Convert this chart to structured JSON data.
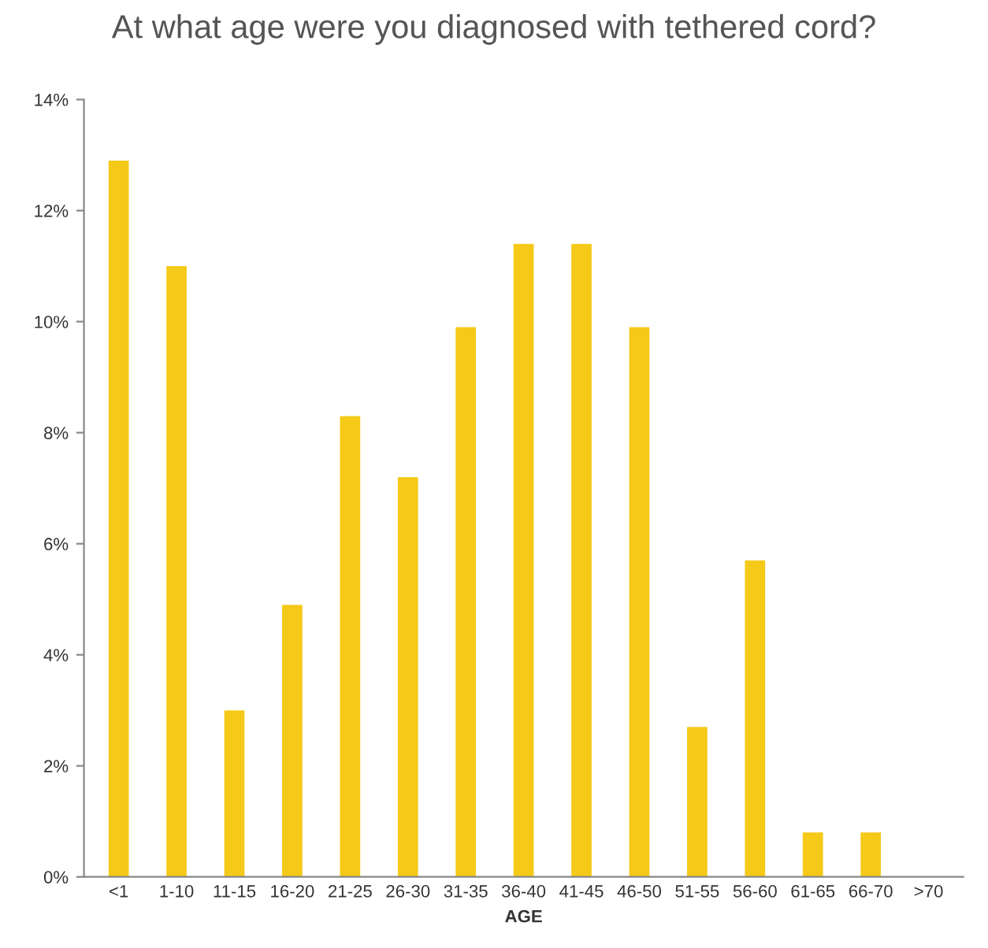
{
  "chart_data": {
    "type": "bar",
    "title": "At what age were you diagnosed with tethered cord?",
    "xlabel": "AGE",
    "categories": [
      "<1",
      "1-10",
      "11-15",
      "16-20",
      "21-25",
      "26-30",
      "31-35",
      "36-40",
      "41-45",
      "46-50",
      "51-55",
      "56-60",
      "61-65",
      "66-70",
      ">70"
    ],
    "values": [
      12.9,
      11.0,
      3.0,
      4.9,
      8.3,
      7.2,
      9.9,
      11.4,
      11.4,
      9.9,
      2.7,
      5.7,
      0.8,
      0.8,
      0
    ],
    "color": "#f5c918",
    "ylim": [
      0,
      14
    ],
    "yticks": [
      {
        "value": 0,
        "label": "0%"
      },
      {
        "value": 2,
        "label": "2%"
      },
      {
        "value": 4,
        "label": "4%"
      },
      {
        "value": 6,
        "label": "6%"
      },
      {
        "value": 8,
        "label": "8%"
      },
      {
        "value": 10,
        "label": "10%"
      },
      {
        "value": 12,
        "label": "12%"
      },
      {
        "value": 14,
        "label": "14%"
      }
    ],
    "grid": false,
    "legend": false
  }
}
